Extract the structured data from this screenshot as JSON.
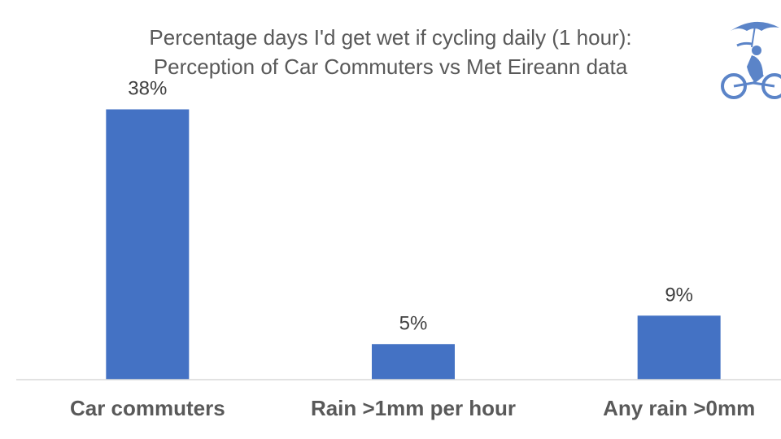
{
  "chart_data": {
    "type": "bar",
    "title": "Percentage days I'd get wet if cycling daily (1 hour):",
    "subtitle": "Perception of Car Commuters vs Met Eireann data",
    "categories": [
      "Car commuters",
      "Rain >1mm per hour",
      "Any rain >0mm"
    ],
    "values": [
      38,
      5,
      9
    ],
    "value_labels": [
      "38%",
      "5%",
      "9%"
    ],
    "ylim": [
      0,
      40
    ],
    "grid": false,
    "legend": "none",
    "bar_color": "#4472C4",
    "axis_color": "#D9D9D9"
  },
  "logo": {
    "icon": "cyclist-with-umbrella-icon",
    "color": "#5B84C8"
  }
}
